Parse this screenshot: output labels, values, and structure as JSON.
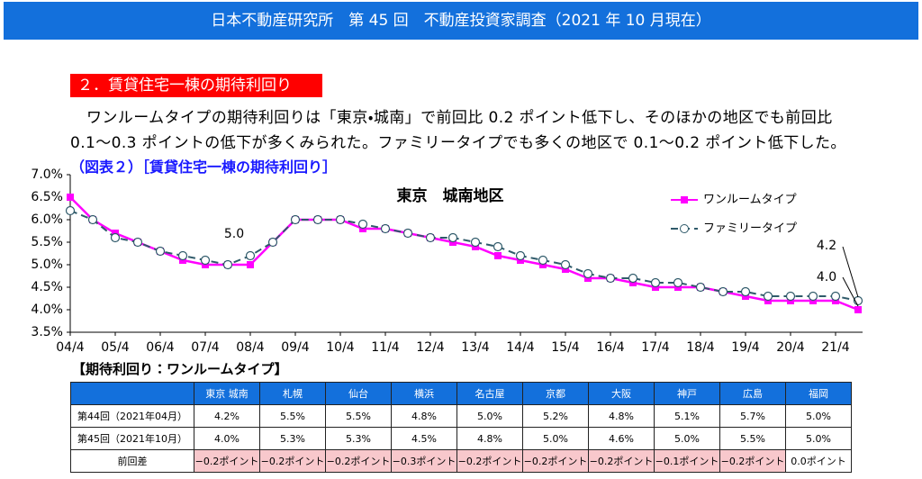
{
  "header": {
    "title": "日本不動産研究所　第 45 回　不動産投資家調査（2021 年 10 月現在）"
  },
  "section": {
    "title": "２．賃貸住宅一棟の期待利回り"
  },
  "paragraph": {
    "lines": [
      "ワンルームタイプの期待利回りは「東京・城南」で前回比 0.2 ポイント低下し、そのほかの地区でも前回比",
      "0.1～0.3 ポイントの低下が多くみられた。ファミリータイプでも多くの地区で 0.1～0.2 ポイント低下した。"
    ]
  },
  "caption": "（図表２）［賃貸住宅一棟の期待利回り］",
  "chart_data": {
    "type": "line",
    "title": "東京　城南地区",
    "categories": [
      "04/4",
      null,
      "05/4",
      null,
      "06/4",
      null,
      "07/4",
      null,
      "08/4",
      null,
      "09/4",
      null,
      "10/4",
      null,
      "11/4",
      null,
      "12/4",
      null,
      "13/4",
      null,
      "14/4",
      null,
      "15/4",
      null,
      "16/4",
      null,
      "17/4",
      null,
      "18/4",
      null,
      "19/4",
      null,
      "20/4",
      null,
      "21/4",
      null
    ],
    "series": [
      {
        "name": "ワンルームタイプ",
        "color": "#ff00ff",
        "values": [
          6.5,
          6.0,
          5.7,
          5.5,
          5.3,
          5.1,
          5.0,
          5.0,
          5.0,
          5.5,
          6.0,
          6.0,
          6.0,
          5.8,
          5.8,
          5.7,
          5.6,
          5.5,
          5.4,
          5.2,
          5.1,
          5.0,
          4.9,
          4.7,
          4.7,
          4.6,
          4.5,
          4.5,
          4.5,
          4.4,
          4.3,
          4.2,
          4.2,
          4.2,
          4.2,
          4.0
        ]
      },
      {
        "name": "ファミリータイプ",
        "color": "#2f5a6a",
        "values": [
          6.2,
          6.0,
          5.6,
          5.5,
          5.3,
          5.2,
          5.1,
          5.0,
          5.2,
          5.5,
          6.0,
          6.0,
          6.0,
          5.9,
          5.8,
          5.7,
          5.6,
          5.6,
          5.5,
          5.4,
          5.2,
          5.1,
          5.0,
          4.8,
          4.7,
          4.7,
          4.6,
          4.6,
          4.5,
          4.4,
          4.4,
          4.3,
          4.3,
          4.3,
          4.3,
          4.2
        ]
      }
    ],
    "annotations": [
      "5.0",
      "4.2",
      "4.0"
    ],
    "ylim": [
      3.5,
      7.0
    ],
    "yticks": [
      {
        "value": 3.5,
        "label": "3.5%"
      },
      {
        "value": 4.0,
        "label": "4.0%"
      },
      {
        "value": 4.5,
        "label": "4.5%"
      },
      {
        "value": 5.0,
        "label": "5.0%"
      },
      {
        "value": 5.5,
        "label": "5.5%"
      },
      {
        "value": 6.0,
        "label": "6.0%"
      },
      {
        "value": 6.5,
        "label": "6.5%"
      },
      {
        "value": 7.0,
        "label": "7.0%"
      }
    ],
    "grid": false,
    "legend": "upper right"
  },
  "table": {
    "title": "【期待利回り：ワンルームタイプ】",
    "header": [
      "東京 城南",
      "札幌",
      "仙台",
      "横浜",
      "名古屋",
      "京都",
      "大阪",
      "神戸",
      "広島",
      "福岡"
    ],
    "rows": [
      [
        "第44回（2021年04月）",
        "4.2%",
        "5.5%",
        "5.5%",
        "4.8%",
        "5.0%",
        "5.2%",
        "4.8%",
        "5.1%",
        "5.7%",
        "5.0%"
      ],
      [
        "第45回（2021年10月）",
        "4.0%",
        "5.3%",
        "5.3%",
        "4.5%",
        "4.8%",
        "5.0%",
        "4.6%",
        "5.0%",
        "5.5%",
        "5.0%"
      ],
      [
        "前回差",
        "−0.2ポイント",
        "−0.2ポイント",
        "−0.2ポイント",
        "−0.3ポイント",
        "−0.2ポイント",
        "−0.2ポイント",
        "−0.2ポイント",
        "−0.1ポイント",
        "−0.2ポイント",
        "0.0ポイント"
      ]
    ]
  }
}
